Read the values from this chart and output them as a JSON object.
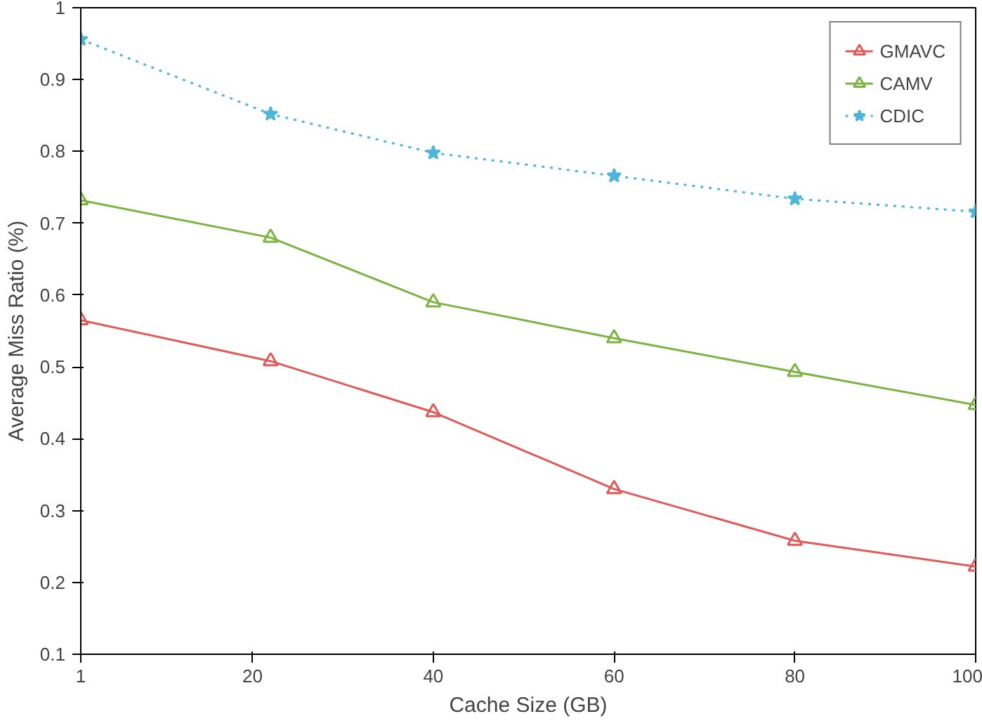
{
  "chart_data": {
    "type": "line",
    "xlabel": "Cache Size (GB)",
    "ylabel": "Average Miss Ratio (%)",
    "x": [
      1,
      22,
      40,
      60,
      80,
      100
    ],
    "series": [
      {
        "name": "GMAVC",
        "color": "#e05a5a",
        "values": [
          0.565,
          0.508,
          0.437,
          0.33,
          0.258,
          0.222
        ],
        "marker": "triangle",
        "line_style": "solid"
      },
      {
        "name": "CAMV",
        "color": "#7cb342",
        "values": [
          0.732,
          0.68,
          0.59,
          0.54,
          0.493,
          0.447
        ],
        "marker": "triangle",
        "line_style": "solid"
      },
      {
        "name": "CDIC",
        "color": "#4db6d9",
        "values": [
          0.956,
          0.852,
          0.798,
          0.766,
          0.734,
          0.716
        ],
        "marker": "star",
        "line_style": "dotted"
      }
    ],
    "xlim": [
      1,
      100
    ],
    "xticks": [
      1,
      20,
      40,
      60,
      80,
      100
    ],
    "ylim": [
      0.1,
      1
    ],
    "yticks": [
      0.1,
      0.2,
      0.3,
      0.4,
      0.5,
      0.6,
      0.7,
      0.8,
      0.9,
      1
    ],
    "grid": false,
    "legend": "top right"
  }
}
